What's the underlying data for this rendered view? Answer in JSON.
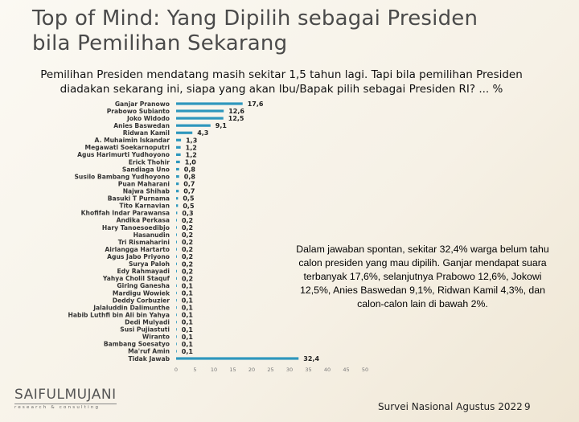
{
  "title": {
    "line1": "Top of Mind: Yang Dipilih sebagai Presiden",
    "line2": "bila Pemilihan Sekarang"
  },
  "subtitle": {
    "line1": "Pemilihan Presiden mendatang masih sekitar 1,5 tahun lagi. Tapi bila pemilihan Presiden",
    "line2": "diadakan sekarang ini, siapa yang akan Ibu/Bapak pilih sebagai Presiden RI? ... %"
  },
  "note": "Dalam jawaban spontan, sekitar 32,4% warga belum tahu calon presiden yang mau dipilih. Ganjar mendapat suara terbanyak 17,6%, selanjutnya Prabowo 12,6%, Jokowi 12,5%, Anies Baswedan 9,1%, Ridwan Kamil 4,3%, dan calon-calon lain di bawah 2%.",
  "logo": {
    "name": "SAIFULMUJANI",
    "tagline": "research & consulting"
  },
  "footer": {
    "survey": "Survei Nasional Agustus 2022",
    "page": "9"
  },
  "chart_data": {
    "type": "bar",
    "orientation": "horizontal",
    "bar_color": "#2e97bd",
    "xlim": [
      0,
      50
    ],
    "xticks": [
      "0",
      "5",
      "10",
      "15",
      "20",
      "25",
      "30",
      "35",
      "40",
      "45",
      "50"
    ],
    "grid": false,
    "categories": [
      "Ganjar Pranowo",
      "Prabowo Subianto",
      "Joko Widodo",
      "Anies Baswedan",
      "Ridwan Kamil",
      "A. Muhaimin Iskandar",
      "Megawati Soekarnoputri",
      "Agus Harimurti Yudhoyono",
      "Erick Thohir",
      "Sandiaga Uno",
      "Susilo Bambang Yudhoyono",
      "Puan Maharani",
      "Najwa Shihab",
      "Basuki T Purnama",
      "Tito Karnavian",
      "Khofifah Indar Parawansa",
      "Andika Perkasa",
      "Hary Tanoesoedibjo",
      "Hasanudin",
      "Tri Rismaharini",
      "Airlangga Hartarto",
      "Agus Jabo Priyono",
      "Surya Paloh",
      "Edy Rahmayadi",
      "Yahya Cholil Staquf",
      "Giring Ganesha",
      "Mardigu Wowiek",
      "Deddy Corbuzier",
      "Jalaluddin Dalimunthe",
      "Habib Luthfi bin Ali bin Yahya",
      "Dedi Mulyadi",
      "Susi Pujiastuti",
      "Wiranto",
      "Bambang Soesatyo",
      "Ma'ruf Amin",
      "Tidak Jawab"
    ],
    "values": [
      17.6,
      12.6,
      12.5,
      9.1,
      4.3,
      1.3,
      1.2,
      1.2,
      1.0,
      0.8,
      0.8,
      0.7,
      0.7,
      0.5,
      0.5,
      0.3,
      0.2,
      0.2,
      0.2,
      0.2,
      0.2,
      0.2,
      0.2,
      0.2,
      0.2,
      0.1,
      0.1,
      0.1,
      0.1,
      0.1,
      0.1,
      0.1,
      0.1,
      0.1,
      0.1,
      32.4
    ],
    "labels": [
      "17,6",
      "12,6",
      "12,5",
      "9,1",
      "4,3",
      "1,3",
      "1,2",
      "1,2",
      "1,0",
      "0,8",
      "0,8",
      "0,7",
      "0,7",
      "0,5",
      "0,5",
      "0,3",
      "0,2",
      "0,2",
      "0,2",
      "0,2",
      "0,2",
      "0,2",
      "0,2",
      "0,2",
      "0,2",
      "0,1",
      "0,1",
      "0,1",
      "0,1",
      "0,1",
      "0,1",
      "0,1",
      "0,1",
      "0,1",
      "0,1",
      "32,4"
    ]
  }
}
